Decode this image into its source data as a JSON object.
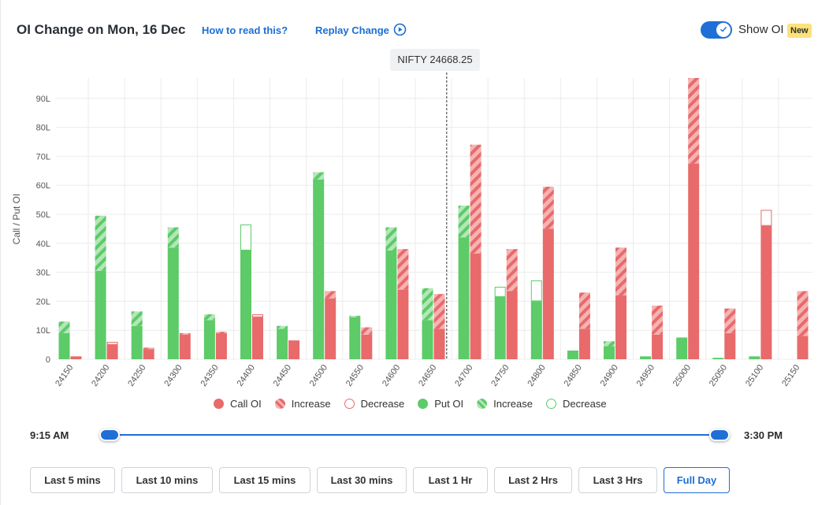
{
  "header": {
    "title": "OI Change on Mon, 16 Dec",
    "how_to_read": "How to read this?",
    "replay": "Replay Change",
    "show_oi": "Show OI",
    "new_badge": "New"
  },
  "spot": {
    "label": "NIFTY 24668.25",
    "value": 24668.25
  },
  "colors": {
    "call": "#e86a6a",
    "call_light": "#f5b3b3",
    "put": "#5ccb68",
    "put_light": "#b4e6b8"
  },
  "legend": [
    {
      "label": "Call OI",
      "style": "call-solid"
    },
    {
      "label": "Increase",
      "style": "call-increase"
    },
    {
      "label": "Decrease",
      "style": "call-decrease"
    },
    {
      "label": "Put OI",
      "style": "put-solid"
    },
    {
      "label": "Increase",
      "style": "put-increase"
    },
    {
      "label": "Decrease",
      "style": "put-decrease"
    }
  ],
  "slider": {
    "start_label": "9:15 AM",
    "end_label": "3:30 PM",
    "start_position": 0,
    "end_position": 1
  },
  "time_buttons": [
    {
      "label": "Last 5 mins",
      "active": false
    },
    {
      "label": "Last 10 mins",
      "active": false
    },
    {
      "label": "Last 15 mins",
      "active": false
    },
    {
      "label": "Last 30 mins",
      "active": false
    },
    {
      "label": "Last 1 Hr",
      "active": false
    },
    {
      "label": "Last 2 Hrs",
      "active": false
    },
    {
      "label": "Last 3 Hrs",
      "active": false
    },
    {
      "label": "Full Day",
      "active": true
    }
  ],
  "chart_data": {
    "type": "bar",
    "ylabel": "Call / Put OI",
    "ylim": [
      0,
      97
    ],
    "yticks": [
      0,
      10,
      20,
      30,
      40,
      50,
      60,
      70,
      80,
      90
    ],
    "ytick_labels": [
      "0",
      "10L",
      "20L",
      "30L",
      "40L",
      "50L",
      "60L",
      "70L",
      "80L",
      "90L"
    ],
    "grid": true,
    "categories": [
      "24150",
      "24200",
      "24250",
      "24300",
      "24350",
      "24400",
      "24450",
      "24500",
      "24550",
      "24600",
      "24650",
      "24700",
      "24750",
      "24800",
      "24850",
      "24900",
      "24950",
      "25000",
      "25050",
      "25100",
      "25150"
    ],
    "series": [
      {
        "name": "Put OI",
        "base": [
          9,
          30.5,
          11.5,
          38.5,
          13.5,
          37.5,
          10.5,
          62,
          14.5,
          37.5,
          13.5,
          42,
          21.5,
          20,
          3,
          4.5,
          1,
          7.5,
          0.5,
          1,
          0
        ],
        "change": [
          4,
          19,
          5,
          7,
          2,
          9,
          1,
          2.5,
          0.5,
          8,
          11,
          11,
          3.5,
          7.2,
          0,
          1.7,
          0,
          0,
          0,
          0,
          0
        ],
        "change_type": [
          "increase",
          "increase",
          "increase",
          "increase",
          "increase",
          "decrease",
          "increase",
          "increase",
          "increase",
          "increase",
          "increase",
          "increase",
          "decrease",
          "decrease",
          "increase",
          "increase",
          "increase",
          "increase",
          "increase",
          "increase",
          "increase"
        ]
      },
      {
        "name": "Call OI",
        "base": [
          1,
          5,
          3.5,
          8.5,
          9,
          14.5,
          6.5,
          21,
          8.5,
          24,
          10.5,
          36.5,
          23.5,
          45,
          10.5,
          22,
          8.5,
          67.5,
          9,
          46,
          8
        ],
        "change": [
          0,
          1,
          0.5,
          0.5,
          0.5,
          1,
          0,
          2.5,
          2.5,
          14,
          12,
          37.5,
          14.5,
          14.5,
          12.5,
          16.5,
          10,
          29.5,
          8.5,
          5.5,
          15.5
        ],
        "change_type": [
          "increase",
          "decrease",
          "increase",
          "increase",
          "increase",
          "decrease",
          "increase",
          "increase",
          "increase",
          "increase",
          "increase",
          "increase",
          "increase",
          "increase",
          "increase",
          "increase",
          "increase",
          "increase",
          "increase",
          "decrease",
          "increase"
        ]
      }
    ],
    "spot_strike": 24668.25
  }
}
